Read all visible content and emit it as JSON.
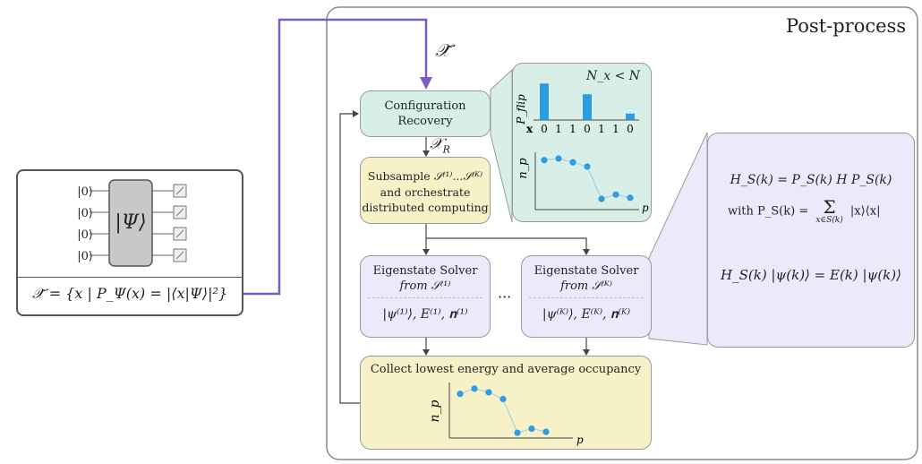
{
  "post_process_title": "Post-process",
  "x_tilde": "𝒳̃",
  "x_r": "𝒳",
  "x_r_sub": "R",
  "config_recovery": {
    "line1": "Configuration",
    "line2": "Recovery"
  },
  "subsample": {
    "line1a": "Subsample ",
    "s1": "𝒮⁽¹⁾",
    "dots": "...",
    "sk": "𝒮⁽ᴷ⁾",
    "line2": "and orchestrate",
    "line3": "distributed computing"
  },
  "solver1": {
    "title": "Eigenstate Solver",
    "from": "from 𝒮⁽¹⁾",
    "output": "|ψ⁽¹⁾⟩, E⁽¹⁾, 𝐧⁽¹⁾"
  },
  "solverk": {
    "title": "Eigenstate Solver",
    "from": "from 𝒮⁽ᴷ⁾",
    "output": "|ψ⁽ᴷ⁾⟩, E⁽ᴷ⁾, 𝐧⁽ᴷ⁾"
  },
  "ellipsis": "···",
  "collect_label": "Collect lowest energy and average occupancy",
  "circuit": {
    "kets": [
      "|0⟩",
      "|0⟩",
      "|0⟩",
      "|0⟩"
    ],
    "psi": "|Ψ⟩",
    "formula": "𝒳̃ = {x | P_Ψ(x) = |⟨x|Ψ⟩|²}"
  },
  "flip_chart": {
    "condition": "N_x < N",
    "ylabel": "P_flip",
    "xlabel": "x",
    "bits": [
      "0",
      "1",
      "1",
      "0",
      "1",
      "1",
      "0"
    ],
    "values": [
      0.85,
      0,
      0,
      0.6,
      0,
      0,
      0.15
    ],
    "color": "#2f9be0"
  },
  "occupancy_top": {
    "ylabel": "n_p",
    "xlabel": "p",
    "values": [
      0.92,
      0.95,
      0.88,
      0.8,
      0.2,
      0.28,
      0.22
    ],
    "color": "#2f9be0"
  },
  "occupancy_bottom": {
    "ylabel": "n_p",
    "xlabel": "p",
    "values": [
      0.85,
      0.95,
      0.88,
      0.75,
      0.1,
      0.18,
      0.12
    ],
    "color": "#2f9be0"
  },
  "equations": {
    "eq1": "H_S(k) = P_S(k) H P_S(k)",
    "eq2_prefix": "with P_S(k) =",
    "eq2_sum": "Σ",
    "eq2_sum_under": "x∈S(k)",
    "eq2_term": "|x⟩⟨x|",
    "eq3": "H_S(k) |ψ(k)⟩ = E(k) |ψ(k)⟩"
  },
  "colors": {
    "purple_arrow": "#7b5cc4",
    "teal": "#d8efe8",
    "yellow": "#f7f1c8",
    "lavender": "#ece9fb",
    "gray_block": "#c8c8c8"
  }
}
